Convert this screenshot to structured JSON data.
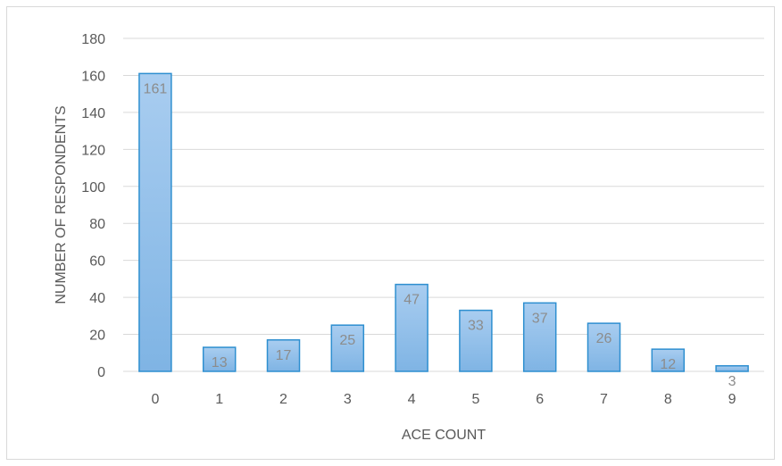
{
  "chart_data": {
    "type": "bar",
    "categories": [
      "0",
      "1",
      "2",
      "3",
      "4",
      "5",
      "6",
      "7",
      "8",
      "9"
    ],
    "values": [
      161,
      13,
      17,
      25,
      47,
      33,
      37,
      26,
      12,
      3
    ],
    "data_labels": [
      "161",
      "13",
      "17",
      "25",
      "47",
      "33",
      "37",
      "26",
      "12",
      "3"
    ],
    "y_ticks": [
      "0",
      "20",
      "40",
      "60",
      "80",
      "100",
      "120",
      "140",
      "160",
      "180"
    ],
    "title": "",
    "xlabel": "ACE COUNT",
    "ylabel": "NUMBER OF RESPONDENTS",
    "ylim": [
      0,
      180
    ],
    "grid": true,
    "legend": "none",
    "colors": {
      "bar_fill_top": "#a9cdf0",
      "bar_fill_bottom": "#7fb4e4",
      "bar_stroke": "#2e8fd0",
      "gridline": "#d9d9d9",
      "text": "#595959",
      "data_label": "#8c8c8c"
    }
  }
}
